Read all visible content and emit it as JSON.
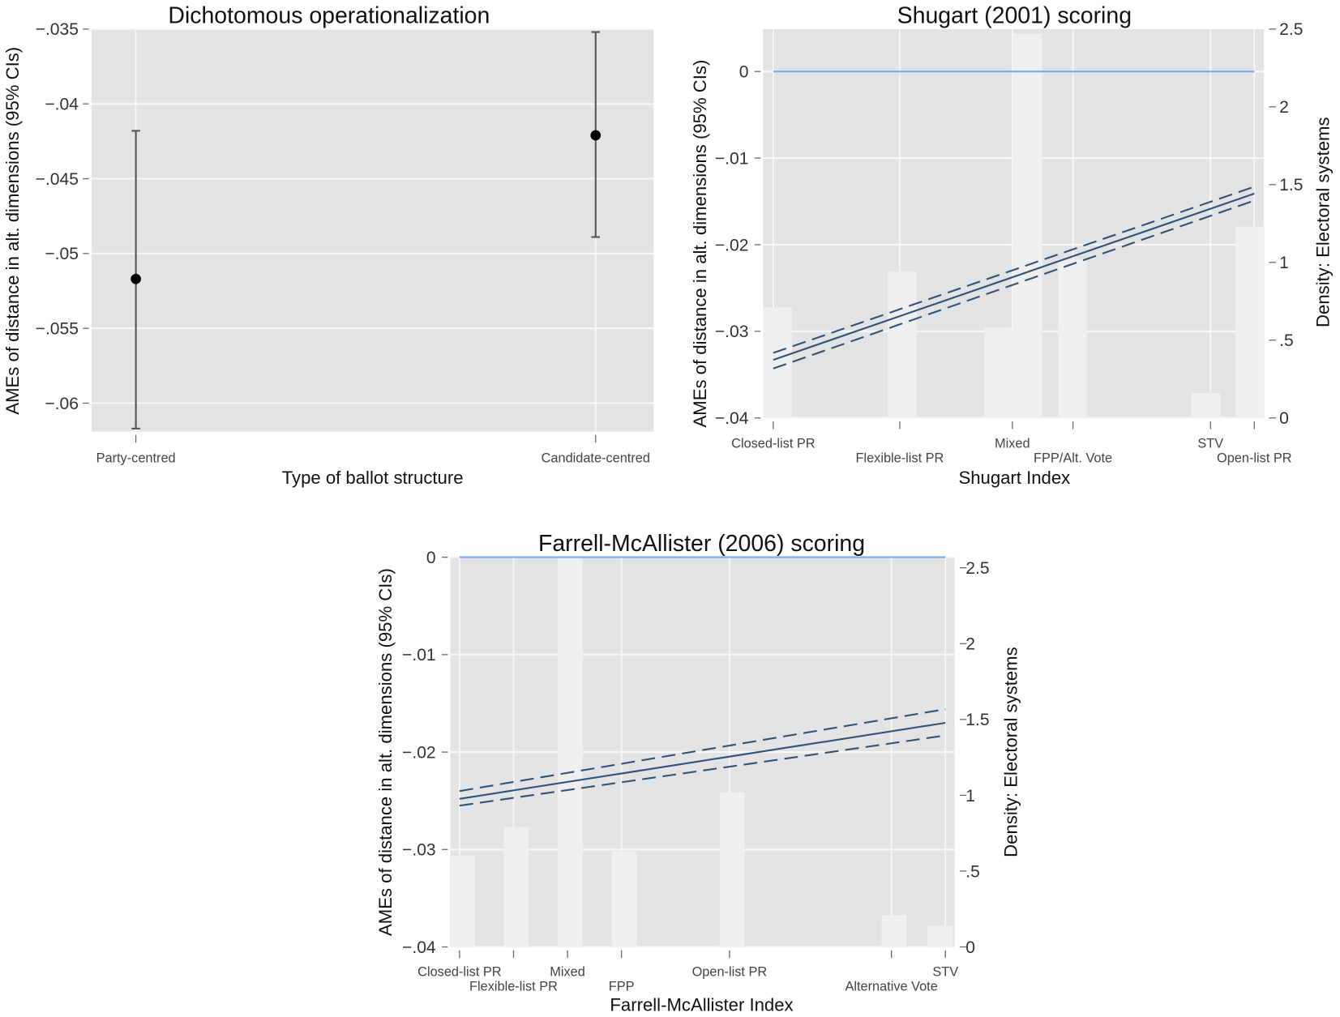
{
  "colors": {
    "plot_bg": "#e3e3e3",
    "grid": "#f7f7f7",
    "bar": "#efefef",
    "fit_line": "#2f5477",
    "zero_line": "#78a8e8",
    "point": "#000000",
    "errorbar": "#555555"
  },
  "chart_data": [
    {
      "type": "scatter",
      "title": "Dichotomous operationalization",
      "xlabel": "Type of ballot structure",
      "ylabel": "AMEs of distance in alt. dimensions (95% CIs)",
      "categories": [
        "Party-centred",
        "Candidate-centred"
      ],
      "estimates": [
        -0.0517,
        -0.0421
      ],
      "ci_low": [
        -0.0617,
        -0.0489
      ],
      "ci_high": [
        -0.0418,
        -0.0352
      ],
      "ylim": [
        -0.0619,
        -0.035
      ],
      "yticks": [
        -0.035,
        -0.04,
        -0.045,
        -0.05,
        -0.055,
        -0.06
      ],
      "ytick_labels": [
        "−.035",
        "−.04",
        "−.045",
        "−.05",
        "−.055",
        "−.06"
      ],
      "grid": true
    },
    {
      "type": "line",
      "title": "Shugart (2001) scoring",
      "xlabel": "Shugart Index",
      "ylabel": "AMEs of distance in alt. dimensions (95% CIs)",
      "ylabel_right": "Density: Electoral systems",
      "xlim": [
        -0.021,
        1.02
      ],
      "ylim": [
        -0.04,
        0.0049
      ],
      "ylim_right": [
        0,
        2.5
      ],
      "yticks": [
        0,
        -0.01,
        -0.02,
        -0.03,
        -0.04
      ],
      "ytick_labels": [
        "0",
        "−.01",
        "−.02",
        "−.03",
        "−.04"
      ],
      "yticks_right": [
        0,
        0.5,
        1,
        1.5,
        2,
        2.5
      ],
      "ytick_right_labels": [
        "0",
        ".5",
        "1",
        "1.5",
        "2",
        "2.5"
      ],
      "xticks": [
        0,
        0.263,
        0.497,
        0.623,
        0.909,
        1.0
      ],
      "xtick_labels": [
        "Closed-list PR",
        "Flexible-list PR",
        "Mixed",
        "FPP/Alt. Vote",
        "STV",
        "Open-list PR"
      ],
      "bars": {
        "x": [
          0.009,
          0.268,
          0.469,
          0.529,
          0.622,
          0.899,
          0.991
        ],
        "density": [
          0.71,
          0.94,
          0.58,
          2.47,
          1.02,
          0.16,
          1.23
        ],
        "width": 0.06
      },
      "fit": {
        "x": [
          0,
          1
        ],
        "y": [
          -0.0333,
          -0.0141
        ]
      },
      "ci_upper": {
        "x": [
          0,
          1
        ],
        "y": [
          -0.0325,
          -0.0133
        ]
      },
      "ci_lower": {
        "x": [
          0,
          1
        ],
        "y": [
          -0.0343,
          -0.0149
        ]
      },
      "reference_line": 0,
      "grid": true
    },
    {
      "type": "line",
      "title": "Farrell-McAllister (2006) scoring",
      "xlabel": "Farrell-McAllister Index",
      "ylabel": "AMEs of distance in alt. dimensions (95% CIs)",
      "ylabel_right": "Density: Electoral systems",
      "xlim": [
        0.83,
        10.17
      ],
      "ylim": [
        -0.04,
        0
      ],
      "ylim_right": [
        0,
        2.57
      ],
      "yticks": [
        0,
        -0.01,
        -0.02,
        -0.03,
        -0.04
      ],
      "ytick_labels": [
        "0",
        "−.01",
        "−.02",
        "−.03",
        "−.04"
      ],
      "yticks_right": [
        0,
        0.5,
        1,
        1.5,
        2,
        2.5
      ],
      "ytick_right_labels": [
        "0",
        ".5",
        "1",
        "1.5",
        "2",
        "2.5"
      ],
      "xticks": [
        1,
        2,
        3,
        4,
        6,
        9,
        10
      ],
      "xtick_labels": [
        "Closed-list PR",
        "Flexible-list PR",
        "Mixed",
        "FPP",
        "Open-list PR",
        "Alternative Vote",
        "STV"
      ],
      "bars": {
        "x": [
          1.05,
          2.05,
          3.05,
          4.05,
          6.05,
          9.05,
          9.9
        ],
        "density": [
          0.6,
          0.79,
          2.6,
          0.63,
          1.02,
          0.21,
          0.14
        ],
        "width": 0.46
      },
      "fit": {
        "x": [
          1,
          10
        ],
        "y": [
          -0.0248,
          -0.017
        ]
      },
      "ci_upper": {
        "x": [
          1,
          10
        ],
        "y": [
          -0.024,
          -0.0156
        ]
      },
      "ci_lower": {
        "x": [
          1,
          10
        ],
        "y": [
          -0.0255,
          -0.0183
        ]
      },
      "reference_line": 0,
      "grid": true
    }
  ]
}
